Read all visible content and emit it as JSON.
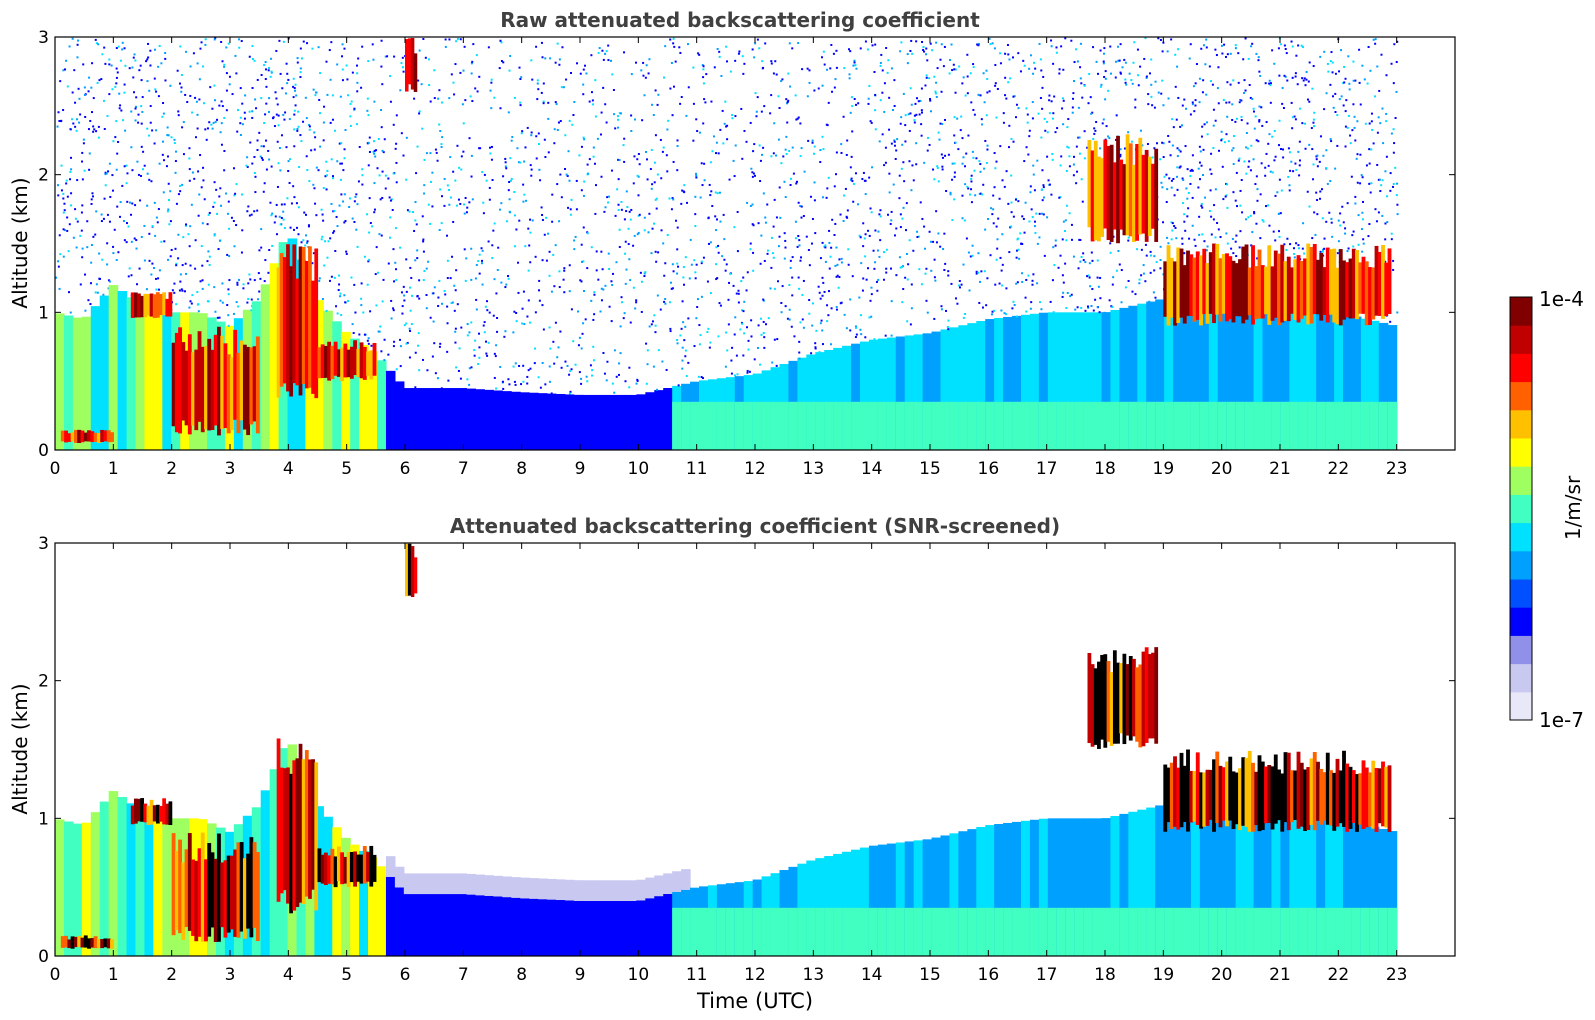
{
  "chart_data": [
    {
      "type": "heatmap",
      "title": "Raw attenuated backscattering coefficient",
      "xlabel": "",
      "ylabel": "Altitude (km)",
      "xlim": [
        0,
        24
      ],
      "ylim": [
        0,
        3
      ],
      "xticks": [
        "0",
        "1",
        "2",
        "3",
        "4",
        "5",
        "6",
        "7",
        "8",
        "9",
        "10",
        "11",
        "12",
        "13",
        "14",
        "15",
        "16",
        "17",
        "18",
        "19",
        "20",
        "21",
        "22",
        "23"
      ],
      "yticks": [
        "0",
        "1",
        "2",
        "3"
      ],
      "data_end_time": 23,
      "boundary_layer_top_km": [
        [
          0,
          1.0
        ],
        [
          0.5,
          0.95
        ],
        [
          1,
          1.2
        ],
        [
          1.5,
          1.05
        ],
        [
          2,
          1.0
        ],
        [
          2.5,
          1.0
        ],
        [
          3,
          0.9
        ],
        [
          3.5,
          1.1
        ],
        [
          4,
          1.6
        ],
        [
          4.5,
          1.1
        ],
        [
          5,
          0.85
        ],
        [
          5.5,
          0.7
        ],
        [
          6,
          0.45
        ],
        [
          7,
          0.45
        ],
        [
          8,
          0.42
        ],
        [
          9,
          0.4
        ],
        [
          10,
          0.4
        ],
        [
          11,
          0.5
        ],
        [
          12,
          0.55
        ],
        [
          13,
          0.7
        ],
        [
          14,
          0.8
        ],
        [
          15,
          0.85
        ],
        [
          16,
          0.95
        ],
        [
          17,
          1.0
        ],
        [
          18,
          1.0
        ],
        [
          19,
          1.1
        ],
        [
          20,
          1.2
        ],
        [
          21,
          1.1
        ],
        [
          22,
          1.0
        ],
        [
          23,
          0.9
        ]
      ],
      "cloud_layers": [
        {
          "x0": 0.1,
          "x1": 1.0,
          "y0": 0.05,
          "y1": 0.15,
          "level": "high"
        },
        {
          "x0": 1.3,
          "x1": 2.0,
          "y0": 0.95,
          "y1": 1.15,
          "level": "high"
        },
        {
          "x0": 2.0,
          "x1": 3.5,
          "y0": 0.1,
          "y1": 0.9,
          "level": "high"
        },
        {
          "x0": 3.8,
          "x1": 4.5,
          "y0": 0.3,
          "y1": 1.6,
          "level": "high"
        },
        {
          "x0": 4.5,
          "x1": 5.5,
          "y0": 0.5,
          "y1": 0.8,
          "level": "high"
        },
        {
          "x0": 6.0,
          "x1": 6.2,
          "y0": 2.6,
          "y1": 3.0,
          "level": "high"
        },
        {
          "x0": 17.7,
          "x1": 18.9,
          "y0": 1.5,
          "y1": 2.3,
          "level": "high"
        },
        {
          "x0": 19.0,
          "x1": 22.9,
          "y0": 0.9,
          "y1": 1.5,
          "level": "high"
        }
      ]
    },
    {
      "type": "heatmap",
      "title": "Attenuated backscattering coefficient (SNR-screened)",
      "xlabel": "Time (UTC)",
      "ylabel": "Altitude (km)",
      "xlim": [
        0,
        24
      ],
      "ylim": [
        0,
        3
      ],
      "xticks": [
        "0",
        "1",
        "2",
        "3",
        "4",
        "5",
        "6",
        "7",
        "8",
        "9",
        "10",
        "11",
        "12",
        "13",
        "14",
        "15",
        "16",
        "17",
        "18",
        "19",
        "20",
        "21",
        "22",
        "23"
      ],
      "yticks": [
        "0",
        "1",
        "2",
        "3"
      ],
      "data_end_time": 23
    }
  ],
  "colorbar": {
    "max_label": "1e-4",
    "min_label": "1e-7",
    "label": "1/m/sr",
    "colormap": "jet",
    "colors": [
      "#e8e8f8",
      "#c8c8f0",
      "#9090e8",
      "#0000ff",
      "#0050ff",
      "#00a0ff",
      "#00e0ff",
      "#40ffc0",
      "#a0ff60",
      "#ffff00",
      "#ffc000",
      "#ff6000",
      "#ff0000",
      "#c00000",
      "#800000"
    ]
  }
}
